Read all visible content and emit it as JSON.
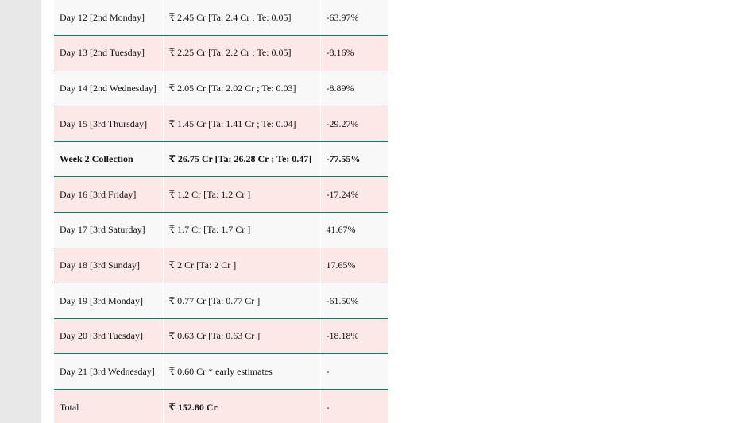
{
  "table": {
    "rows": [
      {
        "day": "Day 12 [2nd Monday]",
        "collection": "₹ 2.45 Cr [Ta: 2.4 Cr ; Te: 0.05]",
        "change": "-63.97%"
      },
      {
        "day": "Day 13 [2nd Tuesday]",
        "collection": "₹ 2.25 Cr [Ta: 2.2 Cr ; Te: 0.05]",
        "change": "-8.16%"
      },
      {
        "day": "Day 14 [2nd Wednesday]",
        "collection": "₹ 2.05 Cr [Ta: 2.02 Cr ; Te: 0.03]",
        "change": "-8.89%"
      },
      {
        "day": "Day 15 [3rd Thursday]",
        "collection": "₹ 1.45 Cr [Ta: 1.41 Cr ; Te: 0.04]",
        "change": "-29.27%"
      },
      {
        "day": "Week 2 Collection",
        "collection": "₹ 26.75 Cr [Ta: 26.28 Cr ; Te: 0.47]",
        "change": "-77.55%"
      },
      {
        "day": "Day 16 [3rd Friday]",
        "collection": "₹ 1.2 Cr [Ta: 1.2 Cr ]",
        "change": "-17.24%"
      },
      {
        "day": "Day 17 [3rd Saturday]",
        "collection": "₹ 1.7 Cr [Ta: 1.7 Cr ]",
        "change": "41.67%"
      },
      {
        "day": "Day 18 [3rd Sunday]",
        "collection": "₹ 2 Cr [Ta: 2 Cr ]",
        "change": "17.65%"
      },
      {
        "day": "Day 19 [3rd Monday]",
        "collection": "₹ 0.77 Cr [Ta: 0.77 Cr ]",
        "change": "-61.50%"
      },
      {
        "day": "Day 20 [3rd Tuesday]",
        "collection": "₹ 0.63 Cr [Ta: 0.63 Cr ]",
        "change": "-18.18%"
      },
      {
        "day": "Day 21 [3rd Wednesday]",
        "collection": "₹ 0.60 Cr * early estimates",
        "change": "-"
      },
      {
        "day": "Total",
        "collection": "₹ 152.80 Cr",
        "change": "-"
      }
    ]
  }
}
